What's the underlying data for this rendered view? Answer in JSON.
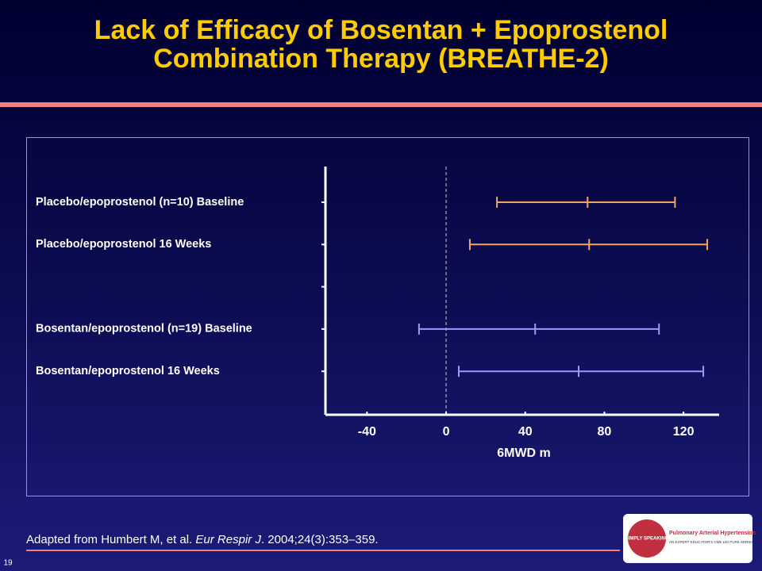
{
  "page_number": "19",
  "source": {
    "before": "Adapted from Humbert M, et al. ",
    "journal": "Eur Respir J",
    "after": ". 2004;24(3):353–359."
  },
  "logo": {
    "brand": "SIMPLY SPEAKING",
    "title": "Pulmonary Arterial Hypertension",
    "subtitle": "AN EXPERT EDUCATOR'S CME LECTURE SERIES"
  },
  "chart_data": {
    "type": "forest",
    "title": [
      "Lack of Efficacy of Bosentan + Epoprostenol",
      "Combination Therapy (BREATHE-2)"
    ],
    "xlabel": "6MWD m",
    "categories": [
      "Placebo/epoprostenol (n=10) Baseline",
      "Placebo/epoprostenol 16 Weeks",
      null,
      "Bosentan/epoprostenol (n=19) Baseline",
      "Bosentan/epoprostenol 16 Weeks"
    ],
    "values": [
      71.5,
      72.3,
      null,
      45,
      67
    ],
    "lower": [
      25.7,
      12,
      null,
      -13.7,
      6.4
    ],
    "upper": [
      115.7,
      132,
      null,
      107.6,
      130
    ],
    "colors": [
      "#f4a460",
      "#f4a460",
      null,
      "#9999ff",
      "#9999ff"
    ],
    "xlim": [
      -61,
      138
    ],
    "xticks": [
      -40,
      0,
      40,
      80,
      120
    ],
    "reference_line": 0
  }
}
